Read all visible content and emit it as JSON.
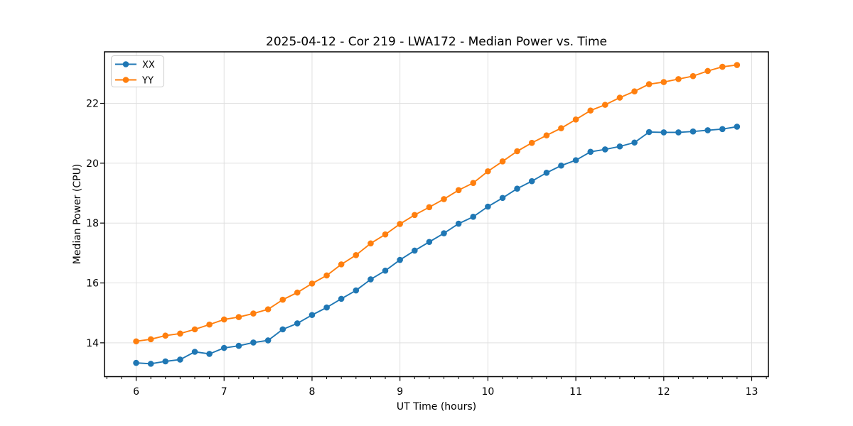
{
  "chart_data": {
    "type": "line",
    "title": "2025-04-12 - Cor 219 - LWA172 - Median Power vs. Time",
    "xlabel": "UT Time (hours)",
    "ylabel": "Median Power (CPU)",
    "xlim": [
      5.64,
      13.19
    ],
    "ylim": [
      12.87,
      23.72
    ],
    "x_major_ticks": [
      6,
      7,
      8,
      9,
      10,
      11,
      12,
      13
    ],
    "y_major_ticks": [
      14,
      16,
      18,
      20,
      22
    ],
    "x_minor_tick_step_hours": 0.1667,
    "grid": true,
    "background_color": "#ffffff",
    "grid_color": "#e0e0e0",
    "spine_color": "#000000",
    "legend": {
      "position": "upper-left",
      "entries": [
        "XX",
        "YY"
      ]
    },
    "x": [
      6.0,
      6.167,
      6.333,
      6.5,
      6.667,
      6.833,
      7.0,
      7.167,
      7.333,
      7.5,
      7.667,
      7.833,
      8.0,
      8.167,
      8.333,
      8.5,
      8.667,
      8.833,
      9.0,
      9.167,
      9.333,
      9.5,
      9.667,
      9.833,
      10.0,
      10.167,
      10.333,
      10.5,
      10.667,
      10.833,
      11.0,
      11.167,
      11.333,
      11.5,
      11.667,
      11.833,
      12.0,
      12.167,
      12.333,
      12.5,
      12.667,
      12.833
    ],
    "series": [
      {
        "name": "XX",
        "color": "#1f77b4",
        "values": [
          13.33,
          13.3,
          13.38,
          13.44,
          13.7,
          13.63,
          13.83,
          13.9,
          14.01,
          14.08,
          14.45,
          14.65,
          14.93,
          15.18,
          15.47,
          15.75,
          16.12,
          16.41,
          16.77,
          17.08,
          17.37,
          17.66,
          17.98,
          18.21,
          18.55,
          18.84,
          19.15,
          19.4,
          19.68,
          19.92,
          20.1,
          20.38,
          20.46,
          20.56,
          20.69,
          21.04,
          21.03,
          21.03,
          21.06,
          21.1,
          21.14,
          21.22
        ]
      },
      {
        "name": "YY",
        "color": "#ff7f0e",
        "values": [
          14.05,
          14.12,
          14.24,
          14.31,
          14.45,
          14.61,
          14.78,
          14.86,
          14.98,
          15.12,
          15.44,
          15.68,
          15.98,
          16.25,
          16.62,
          16.93,
          17.32,
          17.62,
          17.97,
          18.27,
          18.53,
          18.8,
          19.1,
          19.34,
          19.73,
          20.06,
          20.4,
          20.68,
          20.93,
          21.17,
          21.46,
          21.76,
          21.95,
          22.19,
          22.4,
          22.64,
          22.71,
          22.81,
          22.91,
          23.08,
          23.22,
          23.28
        ]
      }
    ]
  }
}
